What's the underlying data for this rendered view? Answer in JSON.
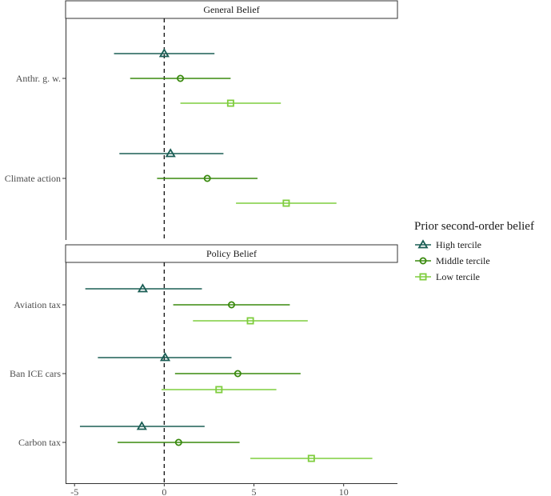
{
  "chart_data": {
    "type": "forest",
    "xlim": [
      -5.5,
      13
    ],
    "x_ticks": [
      -5,
      0,
      5,
      10
    ],
    "x_tick_labels": [
      "-5",
      "0",
      "5",
      "10"
    ],
    "reference_line_x": 0,
    "legend": {
      "title": "Prior second-order belief",
      "items": [
        {
          "key": "high",
          "label": "High tercile",
          "color": "#1b5e55",
          "shape": "triangle"
        },
        {
          "key": "middle",
          "label": "Middle tercile",
          "color": "#3a8a0f",
          "shape": "circle"
        },
        {
          "key": "low",
          "label": "Low tercile",
          "color": "#7fcd3e",
          "shape": "square"
        }
      ],
      "placement": "right"
    },
    "panels": [
      {
        "title": "General Belief",
        "categories": [
          {
            "label": "Anthr. g. w.",
            "estimates": [
              {
                "series": "high",
                "est": 0.0,
                "lo": -2.8,
                "hi": 2.8
              },
              {
                "series": "middle",
                "est": 0.9,
                "lo": -1.9,
                "hi": 3.7
              },
              {
                "series": "low",
                "est": 3.7,
                "lo": 0.9,
                "hi": 6.5
              }
            ]
          },
          {
            "label": "Climate action",
            "estimates": [
              {
                "series": "high",
                "est": 0.35,
                "lo": -2.5,
                "hi": 3.3
              },
              {
                "series": "middle",
                "est": 2.4,
                "lo": -0.4,
                "hi": 5.2
              },
              {
                "series": "low",
                "est": 6.8,
                "lo": 4.0,
                "hi": 9.6
              }
            ]
          }
        ]
      },
      {
        "title": "Policy Belief",
        "categories": [
          {
            "label": "Aviation tax",
            "estimates": [
              {
                "series": "high",
                "est": -1.2,
                "lo": -4.4,
                "hi": 2.1
              },
              {
                "series": "middle",
                "est": 3.75,
                "lo": 0.5,
                "hi": 7.0
              },
              {
                "series": "low",
                "est": 4.8,
                "lo": 1.6,
                "hi": 8.0
              }
            ]
          },
          {
            "label": "Ban ICE cars",
            "estimates": [
              {
                "series": "high",
                "est": 0.05,
                "lo": -3.7,
                "hi": 3.75
              },
              {
                "series": "middle",
                "est": 4.1,
                "lo": 0.6,
                "hi": 7.6
              },
              {
                "series": "low",
                "est": 3.05,
                "lo": -0.15,
                "hi": 6.25
              }
            ]
          },
          {
            "label": "Carbon tax",
            "estimates": [
              {
                "series": "high",
                "est": -1.25,
                "lo": -4.7,
                "hi": 2.25
              },
              {
                "series": "middle",
                "est": 0.8,
                "lo": -2.6,
                "hi": 4.2
              },
              {
                "series": "low",
                "est": 8.2,
                "lo": 4.8,
                "hi": 11.6
              }
            ]
          }
        ]
      }
    ]
  }
}
